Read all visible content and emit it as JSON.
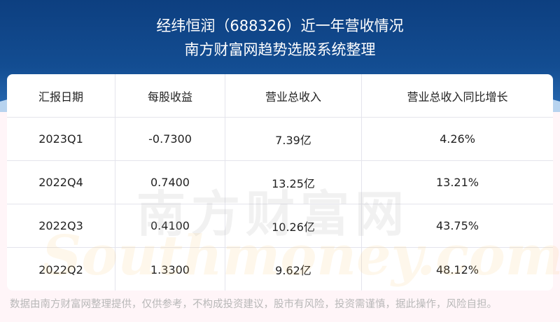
{
  "header": {
    "title": "经纬恒润（688326）近一年营收情况",
    "subtitle": "南方财富网趋势选股系统整理"
  },
  "table": {
    "columns": [
      "汇报日期",
      "每股收益",
      "营业总收入",
      "营业总收入同比增长"
    ],
    "rows": [
      [
        "2023Q1",
        "-0.7300",
        "7.39亿",
        "4.26%"
      ],
      [
        "2022Q4",
        "0.7400",
        "13.25亿",
        "13.21%"
      ],
      [
        "2022Q3",
        "0.4100",
        "10.26亿",
        "43.75%"
      ],
      [
        "2022Q2",
        "1.3300",
        "9.62亿",
        "48.12%"
      ]
    ]
  },
  "watermark": {
    "cn": "南方财富网",
    "en": "Southmoney.com"
  },
  "footer": "数据由南方财富网整理提供，仅供参考，不构成投资建议，股市有风险，投资需谨慎，据此操作，风险自担。",
  "colors": {
    "banner": "#0d3f80",
    "background": "#fff5f8"
  }
}
